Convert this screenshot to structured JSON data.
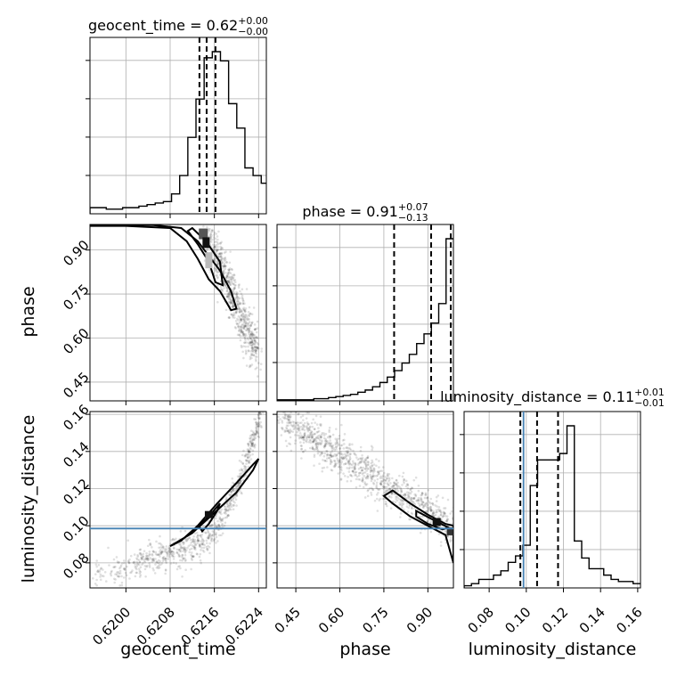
{
  "chart_data": {
    "type": "corner",
    "parameters": [
      "geocent_time",
      "phase",
      "luminosity_distance"
    ],
    "titles": [
      {
        "name": "geocent_time",
        "median": "0.62",
        "plus": "+0.00",
        "minus": "−0.00"
      },
      {
        "name": "phase",
        "median": "0.91",
        "plus": "+0.07",
        "minus": "−0.13"
      },
      {
        "name": "luminosity_distance",
        "median": "0.11",
        "plus": "+0.01",
        "minus": "−0.01"
      }
    ],
    "ranges": {
      "geocent_time": [
        0.61935,
        0.62254
      ],
      "phase": [
        0.386,
        0.987
      ],
      "luminosity_distance": [
        0.0665,
        0.1615
      ]
    },
    "tick_labels": {
      "geocent_time": [
        "0.6200",
        "0.6208",
        "0.6216",
        "0.6224"
      ],
      "phase": [
        "0.45",
        "0.60",
        "0.75",
        "0.90"
      ],
      "luminosity_distance": [
        "0.08",
        "0.10",
        "0.12",
        "0.14",
        "0.16"
      ]
    },
    "quantiles": {
      "geocent_time": [
        0.62133,
        0.62146,
        0.62162
      ],
      "phase": [
        0.785,
        0.911,
        0.978
      ],
      "luminosity_distance": [
        0.0968,
        0.1058,
        0.1171
      ]
    },
    "truths": {
      "luminosity_distance": 0.0985
    },
    "histograms": {
      "geocent_time": {
        "edges": [
          0.61935,
          0.62289
        ],
        "counts": [
          4,
          4,
          3,
          3,
          4,
          4,
          5,
          6,
          7,
          8,
          13,
          25,
          50,
          75,
          102,
          106,
          100,
          72,
          56,
          30,
          25,
          20,
          17,
          12
        ]
      },
      "phase": {
        "edges": [
          0.386,
          0.987
        ],
        "counts": [
          1,
          1,
          1,
          1,
          1,
          2,
          2,
          3,
          4,
          5,
          6,
          8,
          10,
          13,
          17,
          22,
          28,
          35,
          43,
          53,
          62,
          72,
          90,
          150
        ]
      },
      "luminosity_distance": {
        "edges": [
          0.0665,
          0.1615
        ],
        "counts": [
          1,
          2,
          4,
          4,
          6,
          8,
          12,
          15,
          20,
          48,
          60,
          60,
          60,
          63,
          76,
          22,
          14,
          9,
          9,
          6,
          4,
          3,
          3,
          2
        ]
      }
    },
    "axis_labels": {
      "geocent_time": "geocent_time",
      "phase": "phase",
      "luminosity_distance": "luminosity_distance"
    },
    "grid": true
  }
}
